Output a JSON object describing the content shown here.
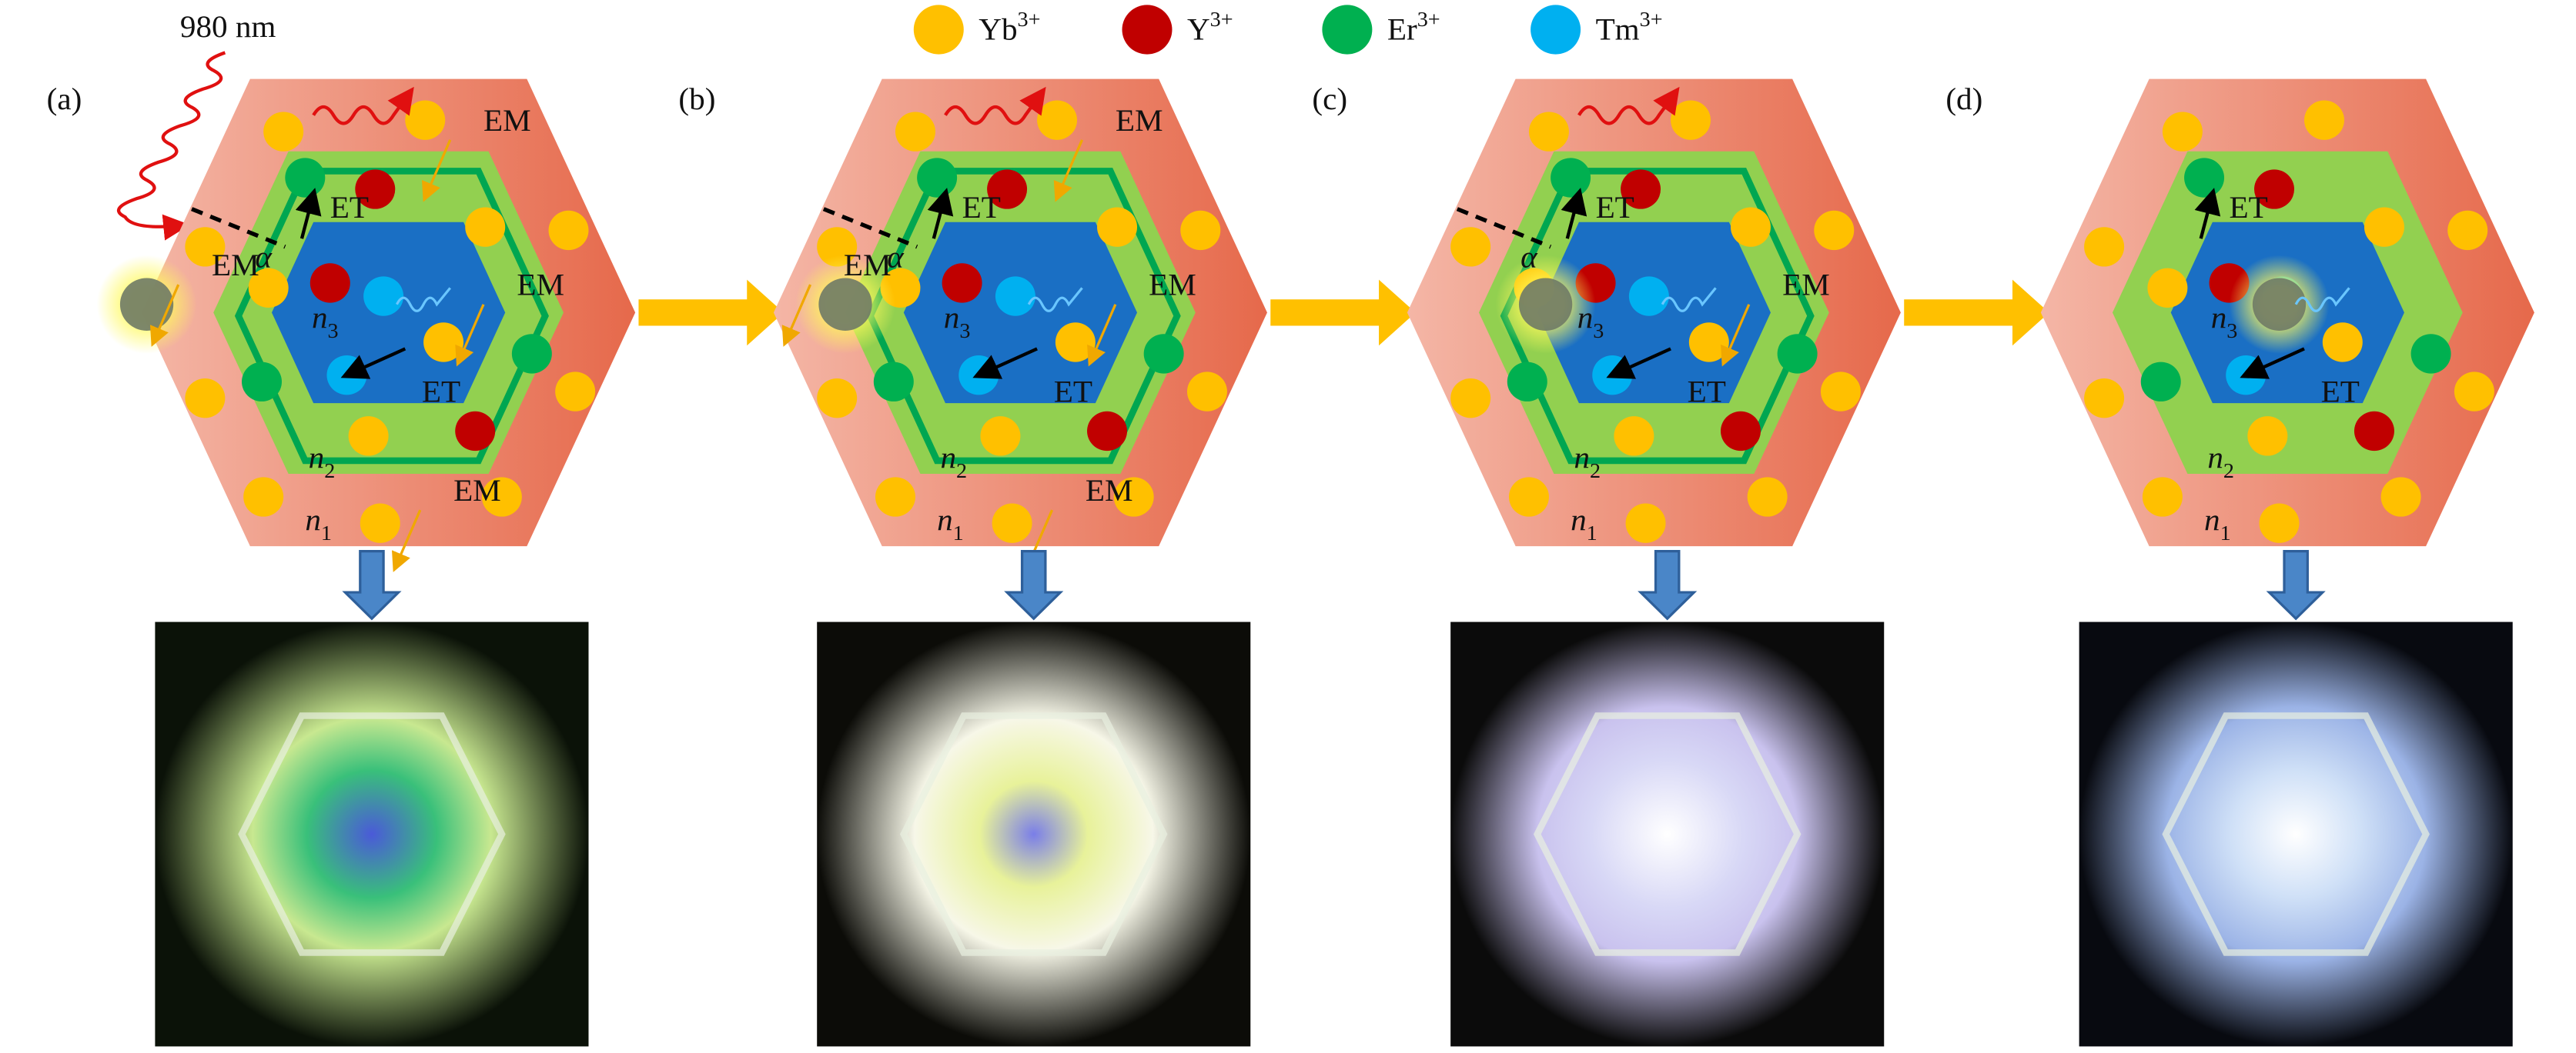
{
  "legend": [
    {
      "symbol": "Yb",
      "charge": "3+",
      "color": "#ffc000"
    },
    {
      "symbol": "Y",
      "charge": "3+",
      "color": "#c00000"
    },
    {
      "symbol": "Er",
      "charge": "3+",
      "color": "#00b050"
    },
    {
      "symbol": "Tm",
      "charge": "3+",
      "color": "#00b0f0"
    }
  ],
  "excitation": "980 nm",
  "panels": [
    {
      "label": "(a)",
      "em": [
        "EM",
        "EM",
        "EM",
        "EM"
      ],
      "et": [
        "ET",
        "ET"
      ],
      "alpha": "α",
      "layers": [
        {
          "symbol": "n",
          "index": "1"
        },
        {
          "symbol": "n",
          "index": "2"
        },
        {
          "symbol": "n",
          "index": "3"
        }
      ]
    },
    {
      "label": "(b)",
      "em": [
        "EM",
        "EM",
        "EM",
        "EM"
      ],
      "et": [
        "ET",
        "ET"
      ],
      "alpha": "α",
      "layers": [
        {
          "symbol": "n",
          "index": "1"
        },
        {
          "symbol": "n",
          "index": "2"
        },
        {
          "symbol": "n",
          "index": "3"
        }
      ]
    },
    {
      "label": "(c)",
      "em": [
        "EM"
      ],
      "et": [
        "ET",
        "ET"
      ],
      "alpha": "α",
      "layers": [
        {
          "symbol": "n",
          "index": "1"
        },
        {
          "symbol": "n",
          "index": "2"
        },
        {
          "symbol": "n",
          "index": "3"
        }
      ]
    },
    {
      "label": "(d)",
      "et": [
        "ET",
        "ET"
      ],
      "layers": [
        {
          "symbol": "n",
          "index": "1"
        },
        {
          "symbol": "n",
          "index": "2"
        },
        {
          "symbol": "n",
          "index": "3"
        }
      ]
    }
  ]
}
